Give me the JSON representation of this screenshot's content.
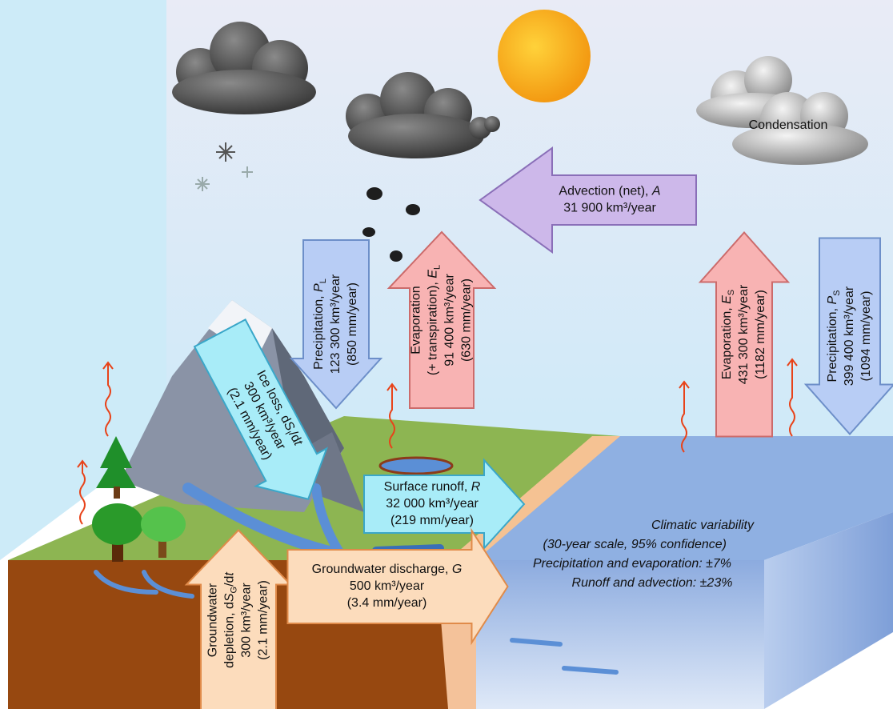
{
  "condensation": "Condensation",
  "arrows": [
    {
      "lines": [
        [
          "Advection (net), ",
          {
            "text": "A",
            "style": "italic"
          }
        ],
        [
          "31 900 km³/year"
        ]
      ]
    },
    {
      "lines": [
        [
          "Precipitation, ",
          {
            "text": "P",
            "style": "italic"
          },
          {
            "text": "L",
            "style": "sub"
          }
        ],
        [
          "123 300 km³/year"
        ],
        [
          "(850 mm/year)"
        ]
      ]
    },
    {
      "lines": [
        [
          "Evaporation"
        ],
        [
          "(+ transpiration), ",
          {
            "text": "E",
            "style": "italic"
          },
          {
            "text": "L",
            "style": "sub"
          }
        ],
        [
          "91 400 km³/year"
        ],
        [
          "(630 mm/year)"
        ]
      ]
    },
    {
      "lines": [
        [
          "Evaporation, ",
          {
            "text": "E",
            "style": "italic"
          },
          {
            "text": "S",
            "style": "sub"
          }
        ],
        [
          "431 300 km³/year"
        ],
        [
          "(1182 mm/year)"
        ]
      ]
    },
    {
      "lines": [
        [
          "Precipitation, ",
          {
            "text": "P",
            "style": "italic"
          },
          {
            "text": "S",
            "style": "sub"
          }
        ],
        [
          "399 400 km³/year"
        ],
        [
          "(1094 mm/year)"
        ]
      ]
    },
    {
      "lines": [
        [
          "Ice loss, d",
          {
            "text": "S",
            "style": "italic"
          },
          {
            "text": "I",
            "style": "sub"
          },
          "/d",
          {
            "text": "t",
            "style": "italic"
          }
        ],
        [
          "300 km³/year"
        ],
        [
          "(2.1 mm/year)"
        ]
      ]
    },
    {
      "lines": [
        [
          "Surface runoff, ",
          {
            "text": "R",
            "style": "italic"
          }
        ],
        [
          "32 000 km³/year"
        ],
        [
          "(219 mm/year)"
        ]
      ]
    },
    {
      "lines": [
        [
          "Groundwater"
        ],
        [
          "depletion, d",
          {
            "text": "S",
            "style": "italic"
          },
          {
            "text": "G",
            "style": "sub"
          },
          "/d",
          {
            "text": "t",
            "style": "italic"
          }
        ],
        [
          "300 km³/year"
        ],
        [
          "(2.1 mm/year)"
        ]
      ]
    },
    {
      "lines": [
        [
          "Groundwater discharge, ",
          {
            "text": "G",
            "style": "italic"
          }
        ],
        [
          "500 km³/year"
        ],
        [
          "(3.4 mm/year)"
        ]
      ]
    }
  ],
  "variability": [
    "Climatic variability",
    "(30-year scale, 95% confidence)",
    "Precipitation and evaporation: ±7%",
    "Runoff and advection: ±23%"
  ]
}
